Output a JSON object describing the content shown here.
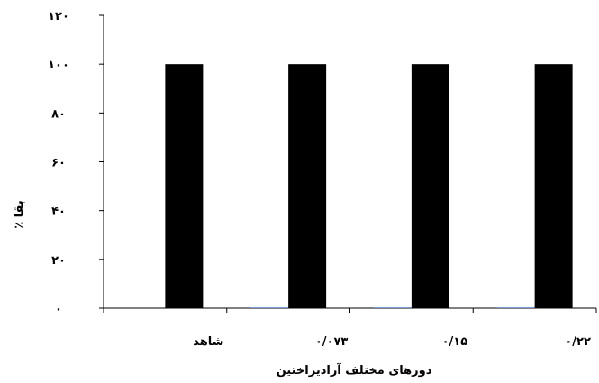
{
  "chart_data": {
    "type": "bar",
    "categories": [
      "شاهد",
      "۰/۰۷۳",
      "۰/۱۵",
      "۰/۲۲"
    ],
    "series": [
      {
        "values": [
          0,
          0.4,
          0.4,
          0.4
        ],
        "color": "#7f9fd6"
      },
      {
        "values": [
          100,
          100,
          100,
          100
        ],
        "color": "#000000"
      }
    ],
    "ylim": [
      0,
      120
    ],
    "yticks": [
      0,
      20,
      40,
      60,
      80,
      100,
      120
    ],
    "ytick_labels": [
      "۰",
      "۲۰",
      "۴۰",
      "۶۰",
      "۸۰",
      "۱۰۰",
      "۱۲۰"
    ],
    "xlabel": "دوزهای مختلف آزادیراختین",
    "ylabel": "٪ بقا",
    "grid": false,
    "legend": "none"
  }
}
